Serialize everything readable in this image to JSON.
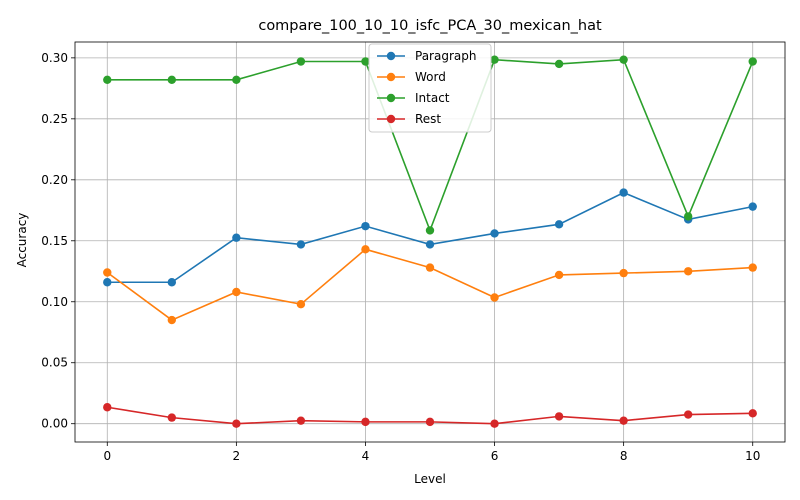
{
  "chart_data": {
    "type": "line",
    "title": "compare_100_10_10_isfc_PCA_30_mexican_hat",
    "xlabel": "Level",
    "ylabel": "Accuracy",
    "x": [
      0,
      1,
      2,
      3,
      4,
      5,
      6,
      7,
      8,
      9,
      10
    ],
    "xlim": [
      -0.5,
      10.5
    ],
    "ylim": [
      -0.015,
      0.313
    ],
    "xticks": [
      0,
      2,
      4,
      6,
      8,
      10
    ],
    "yticks": [
      0.0,
      0.05,
      0.1,
      0.15,
      0.2,
      0.25,
      0.3
    ],
    "xtick_labels": [
      "0",
      "2",
      "4",
      "6",
      "8",
      "10"
    ],
    "ytick_labels": [
      "0.00",
      "0.05",
      "0.10",
      "0.15",
      "0.20",
      "0.25",
      "0.30"
    ],
    "grid": true,
    "legend_position": "top-center",
    "series": [
      {
        "name": "Paragraph",
        "color": "#1f77b4",
        "values": [
          0.116,
          0.116,
          0.1525,
          0.147,
          0.162,
          0.147,
          0.156,
          0.1635,
          0.1895,
          0.1675,
          0.178
        ]
      },
      {
        "name": "Word",
        "color": "#ff7f0e",
        "values": [
          0.124,
          0.085,
          0.108,
          0.098,
          0.143,
          0.128,
          0.1035,
          0.122,
          0.1235,
          0.125,
          0.128
        ]
      },
      {
        "name": "Intact",
        "color": "#2ca02c",
        "values": [
          0.282,
          0.282,
          0.282,
          0.297,
          0.297,
          0.1585,
          0.2985,
          0.295,
          0.2985,
          0.17,
          0.297
        ]
      },
      {
        "name": "Rest",
        "color": "#d62728",
        "values": [
          0.0135,
          0.005,
          0.0,
          0.0025,
          0.0015,
          0.0015,
          0.0,
          0.006,
          0.0025,
          0.0075,
          0.0085
        ]
      }
    ]
  }
}
